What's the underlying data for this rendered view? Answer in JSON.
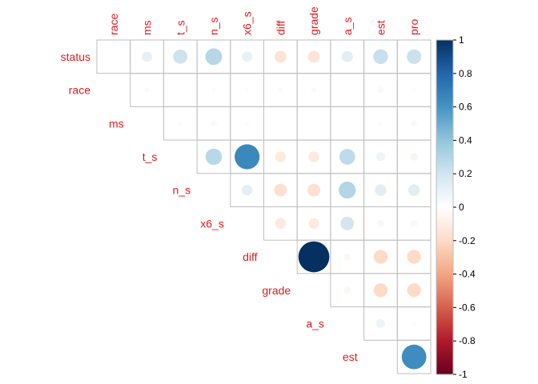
{
  "chart_data": {
    "type": "heatmap",
    "title": "",
    "variables": [
      "status",
      "race",
      "ms",
      "t_s",
      "n_s",
      "x6_s",
      "diff",
      "grade",
      "a_s",
      "est",
      "pro"
    ],
    "matrix_shape": "upper",
    "glyph": "circle",
    "cells": [
      {
        "row": "status",
        "col": "race",
        "r": 0.0
      },
      {
        "row": "status",
        "col": "ms",
        "r": 0.11
      },
      {
        "row": "status",
        "col": "t_s",
        "r": 0.21
      },
      {
        "row": "status",
        "col": "n_s",
        "r": 0.29
      },
      {
        "row": "status",
        "col": "x6_s",
        "r": 0.11
      },
      {
        "row": "status",
        "col": "diff",
        "r": -0.15
      },
      {
        "row": "status",
        "col": "grade",
        "r": -0.15
      },
      {
        "row": "status",
        "col": "a_s",
        "r": 0.13
      },
      {
        "row": "status",
        "col": "est",
        "r": 0.23
      },
      {
        "row": "status",
        "col": "pro",
        "r": 0.22
      },
      {
        "row": "race",
        "col": "ms",
        "r": 0.03
      },
      {
        "row": "race",
        "col": "t_s",
        "r": 0.0
      },
      {
        "row": "race",
        "col": "n_s",
        "r": 0.02
      },
      {
        "row": "race",
        "col": "x6_s",
        "r": 0.02
      },
      {
        "row": "race",
        "col": "diff",
        "r": 0.03
      },
      {
        "row": "race",
        "col": "grade",
        "r": 0.03
      },
      {
        "row": "race",
        "col": "a_s",
        "r": 0.0
      },
      {
        "row": "race",
        "col": "est",
        "r": 0.04
      },
      {
        "row": "race",
        "col": "pro",
        "r": 0.02
      },
      {
        "row": "ms",
        "col": "t_s",
        "r": 0.02
      },
      {
        "row": "ms",
        "col": "n_s",
        "r": 0.04
      },
      {
        "row": "ms",
        "col": "x6_s",
        "r": 0.02
      },
      {
        "row": "ms",
        "col": "diff",
        "r": 0.0
      },
      {
        "row": "ms",
        "col": "grade",
        "r": 0.0
      },
      {
        "row": "ms",
        "col": "a_s",
        "r": 0.0
      },
      {
        "row": "ms",
        "col": "est",
        "r": 0.02
      },
      {
        "row": "ms",
        "col": "pro",
        "r": 0.04
      },
      {
        "row": "t_s",
        "col": "n_s",
        "r": 0.28
      },
      {
        "row": "t_s",
        "col": "x6_s",
        "r": 0.65
      },
      {
        "row": "t_s",
        "col": "diff",
        "r": -0.12
      },
      {
        "row": "t_s",
        "col": "grade",
        "r": -0.12
      },
      {
        "row": "t_s",
        "col": "a_s",
        "r": 0.26
      },
      {
        "row": "t_s",
        "col": "est",
        "r": 0.08
      },
      {
        "row": "t_s",
        "col": "pro",
        "r": 0.06
      },
      {
        "row": "n_s",
        "col": "x6_s",
        "r": 0.12
      },
      {
        "row": "n_s",
        "col": "diff",
        "r": -0.17
      },
      {
        "row": "n_s",
        "col": "grade",
        "r": -0.17
      },
      {
        "row": "n_s",
        "col": "a_s",
        "r": 0.3
      },
      {
        "row": "n_s",
        "col": "est",
        "r": 0.14
      },
      {
        "row": "n_s",
        "col": "pro",
        "r": 0.14
      },
      {
        "row": "x6_s",
        "col": "diff",
        "r": -0.12
      },
      {
        "row": "x6_s",
        "col": "grade",
        "r": -0.12
      },
      {
        "row": "x6_s",
        "col": "a_s",
        "r": 0.19
      },
      {
        "row": "x6_s",
        "col": "est",
        "r": 0.05
      },
      {
        "row": "x6_s",
        "col": "pro",
        "r": 0.05
      },
      {
        "row": "diff",
        "col": "grade",
        "r": 1.0
      },
      {
        "row": "diff",
        "col": "a_s",
        "r": -0.05
      },
      {
        "row": "diff",
        "col": "est",
        "r": -0.2
      },
      {
        "row": "diff",
        "col": "pro",
        "r": -0.2
      },
      {
        "row": "grade",
        "col": "a_s",
        "r": -0.05
      },
      {
        "row": "grade",
        "col": "est",
        "r": -0.2
      },
      {
        "row": "grade",
        "col": "pro",
        "r": -0.2
      },
      {
        "row": "a_s",
        "col": "est",
        "r": 0.08
      },
      {
        "row": "a_s",
        "col": "pro",
        "r": 0.02
      },
      {
        "row": "est",
        "col": "pro",
        "r": 0.63
      }
    ],
    "colorbar": {
      "range": [
        -1,
        1
      ],
      "ticks": [
        "1",
        "0.8",
        "0.6",
        "0.4",
        "0.2",
        "0",
        "-0.2",
        "-0.4",
        "-0.6",
        "-0.8",
        "-1"
      ],
      "color_stops": [
        "#67001f",
        "#b2182b",
        "#d6604d",
        "#f4a582",
        "#fddbc7",
        "#ffffff",
        "#d1e5f0",
        "#92c5de",
        "#4393c3",
        "#2166ac",
        "#053061"
      ]
    },
    "label_color": "#e31a1c",
    "grid_color": "#bebebe",
    "grid": true,
    "legend_position": "right"
  }
}
